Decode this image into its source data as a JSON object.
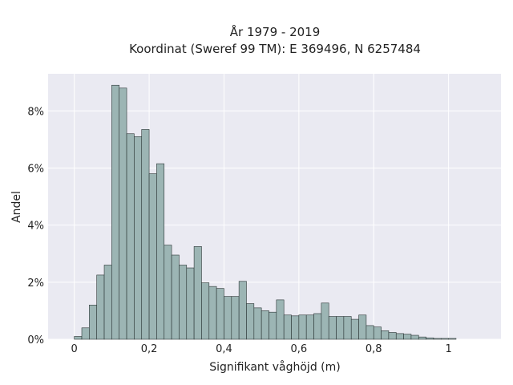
{
  "chart_data": {
    "type": "bar",
    "title": "År 1979 - 2019",
    "subtitle": "Koordinat (Sweref 99 TM): E 369496, N 6257484",
    "xlabel": "Signifikant våghöjd (m)",
    "ylabel": "Andel",
    "xlim": [
      -0.07,
      1.14
    ],
    "ylim": [
      0,
      9.3
    ],
    "x_ticks": [
      {
        "value": 0,
        "label": "0"
      },
      {
        "value": 0.2,
        "label": "0,2"
      },
      {
        "value": 0.4,
        "label": "0,4"
      },
      {
        "value": 0.6,
        "label": "0,6"
      },
      {
        "value": 0.8,
        "label": "0,8"
      },
      {
        "value": 1.0,
        "label": "1"
      }
    ],
    "y_ticks": [
      {
        "value": 0,
        "label": "0%"
      },
      {
        "value": 2,
        "label": "2%"
      },
      {
        "value": 4,
        "label": "4%"
      },
      {
        "value": 6,
        "label": "6%"
      },
      {
        "value": 8,
        "label": "8%"
      }
    ],
    "bin_width": 0.02,
    "bin_start": 0.0,
    "values": [
      0.1,
      0.4,
      1.2,
      2.25,
      2.6,
      8.9,
      8.8,
      7.2,
      7.1,
      7.35,
      5.8,
      6.15,
      3.3,
      2.95,
      2.6,
      2.5,
      3.25,
      1.98,
      1.85,
      1.78,
      1.5,
      1.5,
      2.03,
      1.25,
      1.1,
      1.0,
      0.95,
      1.38,
      0.85,
      0.82,
      0.85,
      0.85,
      0.9,
      1.27,
      0.8,
      0.8,
      0.8,
      0.7,
      0.85,
      0.48,
      0.43,
      0.3,
      0.24,
      0.2,
      0.18,
      0.14,
      0.08,
      0.05,
      0.03,
      0.03,
      0.03
    ],
    "grid": true,
    "colors": {
      "bar_fill": "#9cb5b4",
      "bar_stroke": "#2b3535",
      "plot_bg": "#eaeaf2",
      "grid": "#ffffff"
    }
  }
}
